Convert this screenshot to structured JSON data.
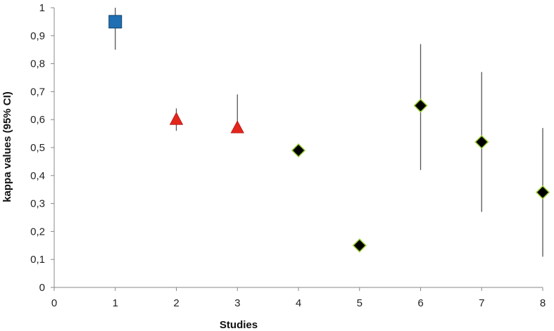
{
  "chart_data": {
    "type": "scatter",
    "xlabel": "Studies",
    "ylabel": "kappa values (95% CI)",
    "xlim": [
      0,
      8
    ],
    "ylim": [
      0,
      1
    ],
    "x_ticks": [
      "0",
      "1",
      "2",
      "3",
      "4",
      "5",
      "6",
      "7",
      "8"
    ],
    "y_ticks": [
      "0",
      "0,1",
      "0,2",
      "0,3",
      "0,4",
      "0,5",
      "0,6",
      "0,7",
      "0,8",
      "0,9",
      "1"
    ],
    "grid": false,
    "legend": "none",
    "points": [
      {
        "x": 1,
        "y": 0.95,
        "ci_low": 0.85,
        "ci_high": 1.0,
        "marker": "square",
        "color": "#1f6fb2"
      },
      {
        "x": 2,
        "y": 0.6,
        "ci_low": 0.56,
        "ci_high": 0.64,
        "marker": "triangle",
        "color": "#e3261c"
      },
      {
        "x": 3,
        "y": 0.57,
        "ci_low": 0.57,
        "ci_high": 0.69,
        "marker": "triangle",
        "color": "#e3261c"
      },
      {
        "x": 4,
        "y": 0.49,
        "ci_low": 0.49,
        "ci_high": 0.49,
        "marker": "diamond",
        "color": "#000000"
      },
      {
        "x": 5,
        "y": 0.15,
        "ci_low": 0.15,
        "ci_high": 0.15,
        "marker": "diamond",
        "color": "#000000"
      },
      {
        "x": 6,
        "y": 0.65,
        "ci_low": 0.42,
        "ci_high": 0.87,
        "marker": "diamond",
        "color": "#000000"
      },
      {
        "x": 7,
        "y": 0.52,
        "ci_low": 0.27,
        "ci_high": 0.77,
        "marker": "diamond",
        "color": "#000000"
      },
      {
        "x": 8,
        "y": 0.34,
        "ci_low": 0.11,
        "ci_high": 0.57,
        "marker": "diamond",
        "color": "#000000"
      }
    ],
    "colors": {
      "axis": "#888888",
      "errorbar": "#555555",
      "diamond_edge": "#9acd32"
    }
  }
}
